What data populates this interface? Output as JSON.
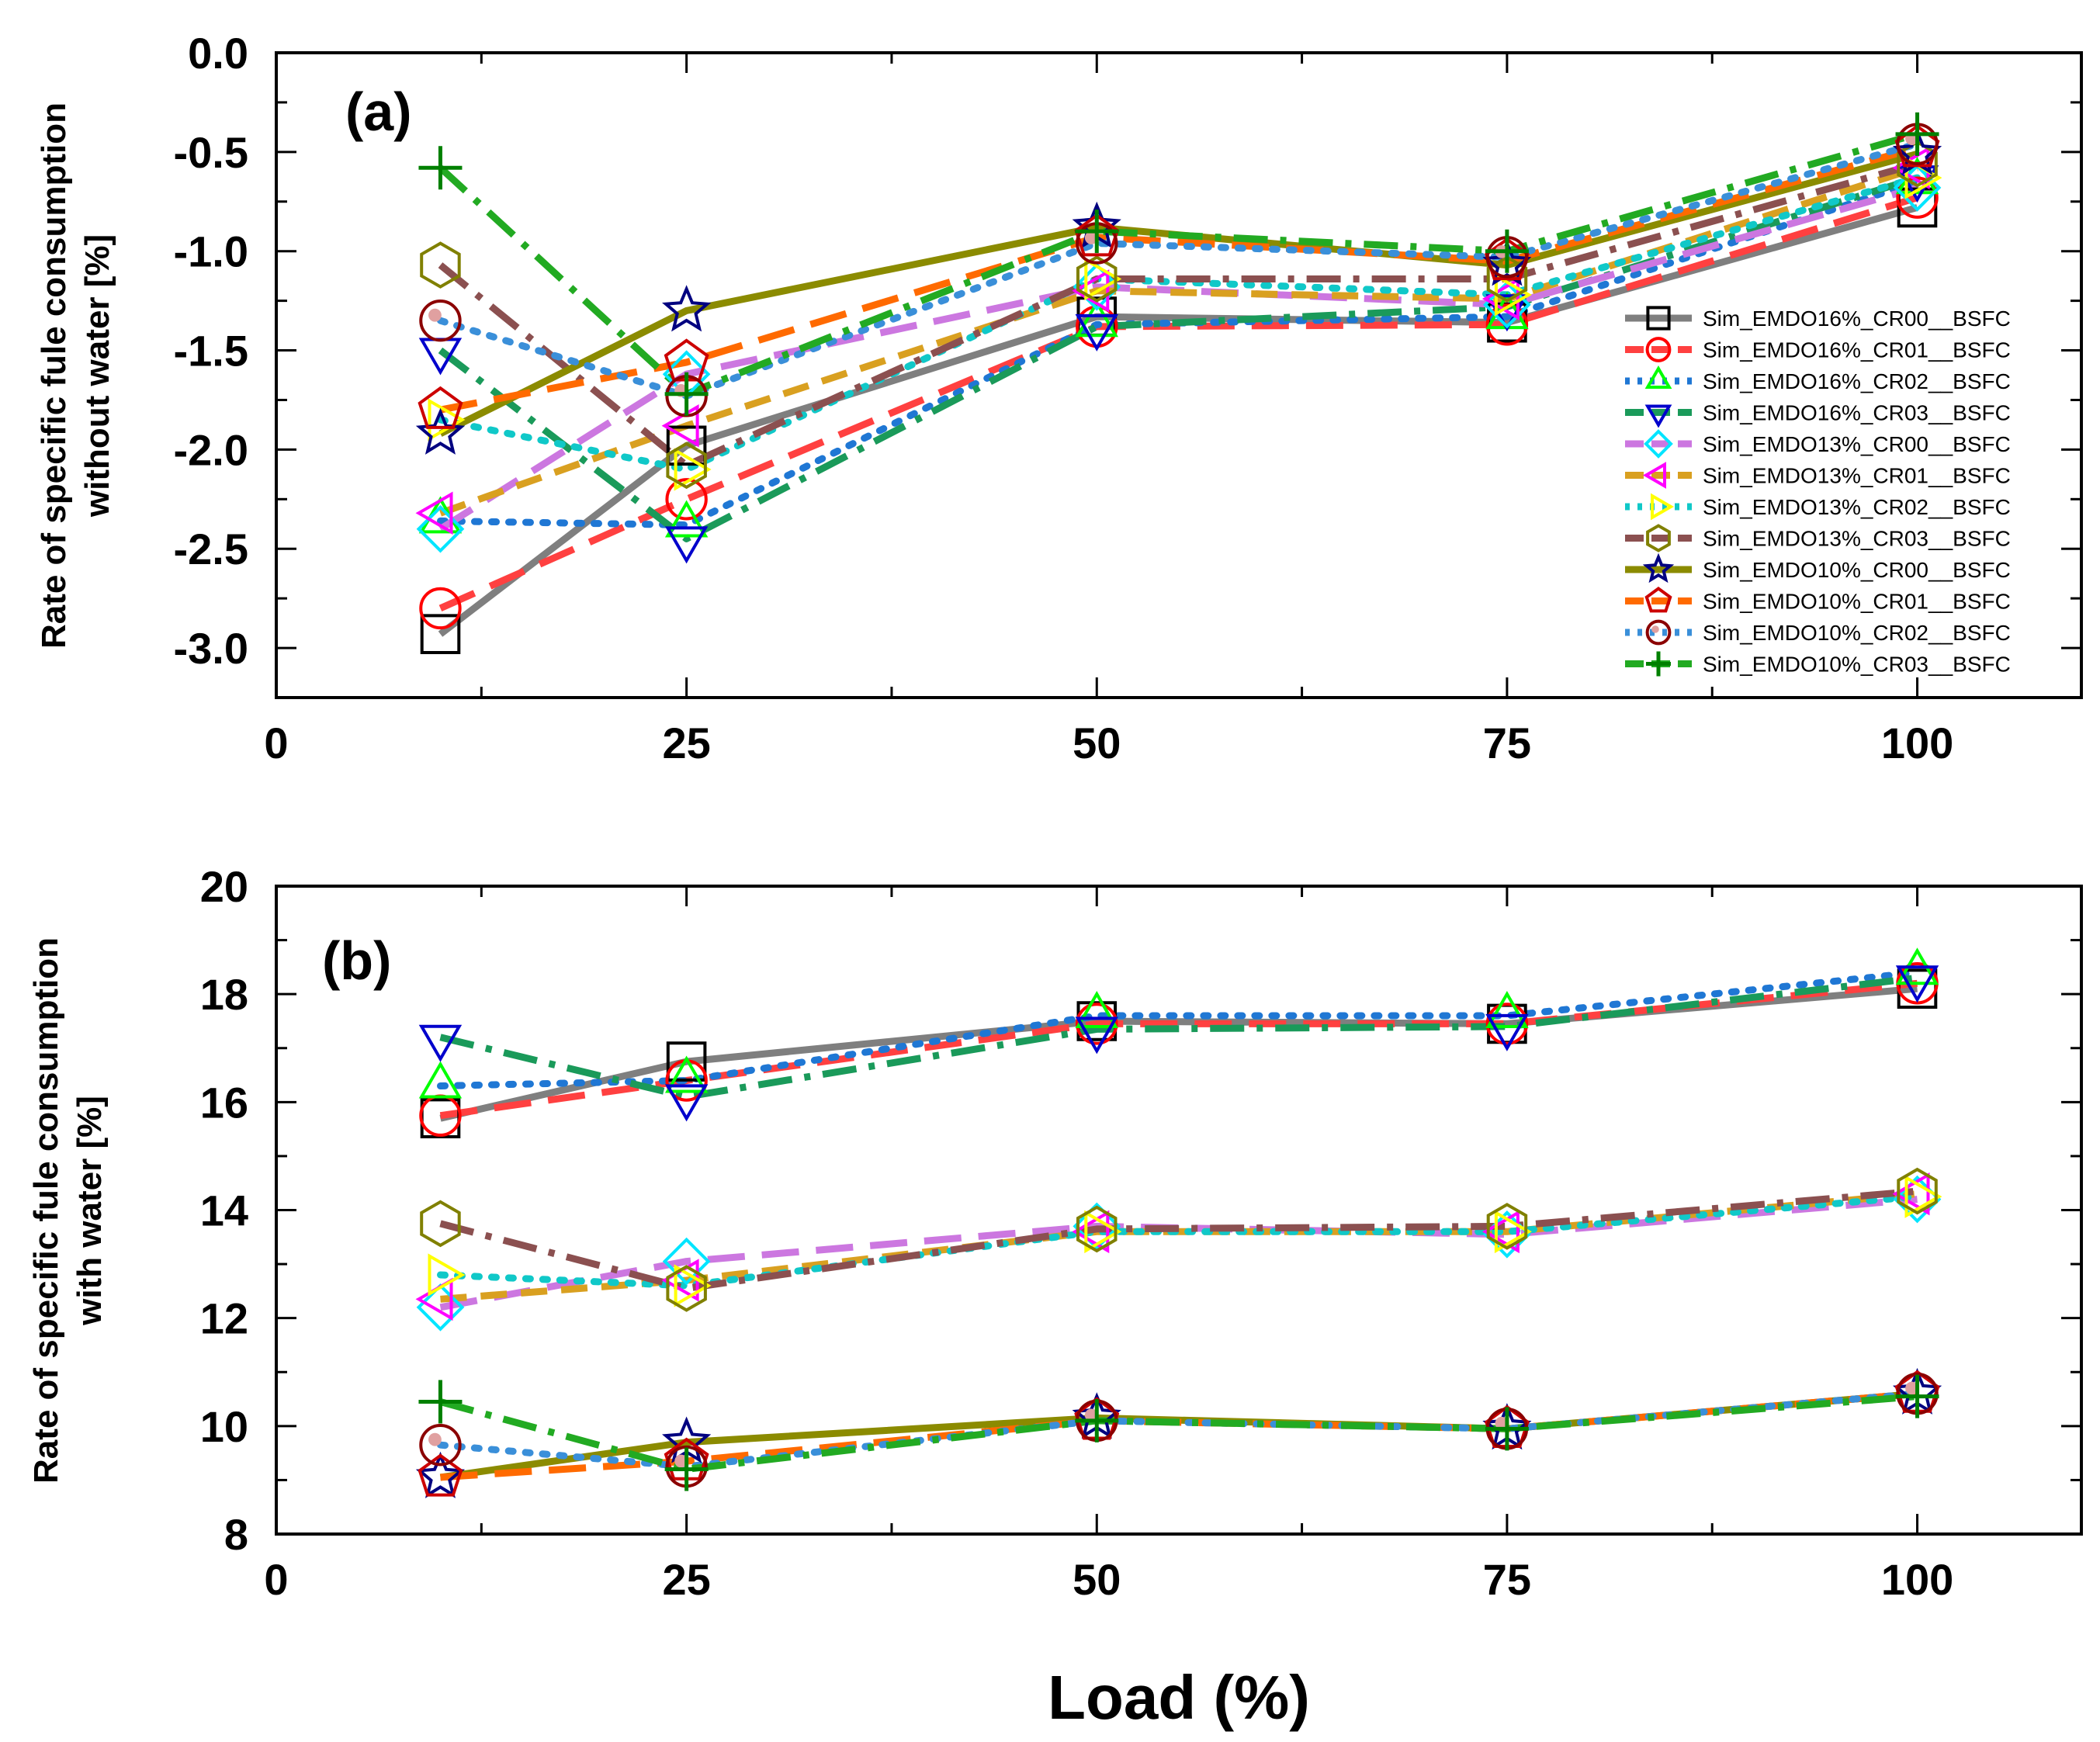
{
  "figure": {
    "xlabel": "Load (%)"
  },
  "chart_data": [
    {
      "type": "line",
      "panel_label": "(a)",
      "title": "",
      "xlabel": "",
      "ylabel_lines": [
        "Rate of specific fule consumption",
        "without water [%]"
      ],
      "xlim": [
        0,
        110
      ],
      "ylim": [
        -3.25,
        0.0
      ],
      "xticks": [
        0,
        25,
        50,
        75,
        100
      ],
      "xtick_labels": [
        "0",
        "25",
        "50",
        "75",
        "100"
      ],
      "yticks": [
        0.0,
        -0.5,
        -1.0,
        -1.5,
        -2.0,
        -2.5,
        -3.0
      ],
      "ytick_labels": [
        "0.0",
        "-0.5",
        "-1.0",
        "-1.5",
        "-2.0",
        "-2.5",
        "-3.0"
      ],
      "legend_position": "right-center",
      "x": [
        10,
        25,
        50,
        75,
        100
      ],
      "series": [
        {
          "name": "Sim_EMDO16%_CR00__BSFC",
          "color": "#7f7f7f",
          "dash": "solid",
          "marker": "square",
          "marker_color": "#000000",
          "values": [
            -2.93,
            -1.98,
            -1.33,
            -1.36,
            -0.78
          ]
        },
        {
          "name": "Sim_EMDO16%_CR01__BSFC",
          "color": "#ff4040",
          "dash": "long",
          "marker": "circle",
          "marker_color": "#ff0000",
          "values": [
            -2.8,
            -2.25,
            -1.38,
            -1.37,
            -0.73
          ]
        },
        {
          "name": "Sim_EMDO16%_CR02__BSFC",
          "color": "#1f77d4",
          "dash": "dot",
          "marker": "triangle-up",
          "marker_color": "#00ff00",
          "values": [
            -2.36,
            -2.38,
            -1.37,
            -1.33,
            -0.65
          ]
        },
        {
          "name": "Sim_EMDO16%_CR03__BSFC",
          "color": "#1a9a5a",
          "dash": "dashdot",
          "marker": "triangle-down",
          "marker_color": "#0000cc",
          "values": [
            -1.5,
            -2.45,
            -1.38,
            -1.28,
            -0.63
          ]
        },
        {
          "name": "Sim_EMDO13%_CR00__BSFC",
          "color": "#cc77e0",
          "dash": "long",
          "marker": "diamond",
          "marker_color": "#00e5ff",
          "values": [
            -2.4,
            -1.62,
            -1.18,
            -1.27,
            -0.68
          ]
        },
        {
          "name": "Sim_EMDO13%_CR01__BSFC",
          "color": "#d9a020",
          "dash": "mid",
          "marker": "triangle-left",
          "marker_color": "#ff00ff",
          "values": [
            -2.32,
            -1.88,
            -1.2,
            -1.24,
            -0.58
          ]
        },
        {
          "name": "Sim_EMDO13%_CR02__BSFC",
          "color": "#10c8c8",
          "dash": "dot",
          "marker": "triangle-right",
          "marker_color": "#ffff00",
          "values": [
            -1.85,
            -2.1,
            -1.14,
            -1.22,
            -0.63
          ]
        },
        {
          "name": "Sim_EMDO13%_CR03__BSFC",
          "color": "#8b5050",
          "dash": "dashdot",
          "marker": "hexagon",
          "marker_color": "#808000",
          "values": [
            -1.07,
            -2.08,
            -1.14,
            -1.14,
            -0.56
          ]
        },
        {
          "name": "Sim_EMDO10%_CR00__BSFC",
          "color": "#8b8b00",
          "dash": "solid",
          "marker": "star",
          "marker_color": "#000080",
          "values": [
            -1.92,
            -1.3,
            -0.88,
            -1.07,
            -0.51
          ]
        },
        {
          "name": "Sim_EMDO10%_CR01__BSFC",
          "color": "#ff6a00",
          "dash": "long",
          "marker": "pentagon",
          "marker_color": "#cc0000",
          "values": [
            -1.8,
            -1.56,
            -0.93,
            -1.05,
            -0.48
          ]
        },
        {
          "name": "Sim_EMDO10%_CR02__BSFC",
          "color": "#3a8fd9",
          "dash": "dot",
          "marker": "circle-dot",
          "marker_color": "#8b0000",
          "values": [
            -1.35,
            -1.73,
            -0.96,
            -1.03,
            -0.46
          ]
        },
        {
          "name": "Sim_EMDO10%_CR03__BSFC",
          "color": "#22aa22",
          "dash": "dashdot",
          "marker": "plus",
          "marker_color": "#008000",
          "values": [
            -0.58,
            -1.72,
            -0.9,
            -1.0,
            -0.41
          ]
        }
      ]
    },
    {
      "type": "line",
      "panel_label": "(b)",
      "title": "",
      "xlabel": "",
      "ylabel_lines": [
        "Rate of specific fule consumption",
        "with water [%]"
      ],
      "xlim": [
        0,
        110
      ],
      "ylim": [
        8,
        20
      ],
      "xticks": [
        0,
        25,
        50,
        75,
        100
      ],
      "xtick_labels": [
        "0",
        "25",
        "50",
        "75",
        "100"
      ],
      "yticks": [
        8,
        10,
        12,
        14,
        16,
        18,
        20
      ],
      "ytick_labels": [
        "8",
        "10",
        "12",
        "14",
        "16",
        "18",
        "20"
      ],
      "x": [
        10,
        25,
        50,
        75,
        100
      ],
      "series": [
        {
          "name": "Sim_EMDO16%_CR00__BSFC",
          "color": "#7f7f7f",
          "dash": "solid",
          "marker": "square",
          "marker_color": "#000000",
          "values": [
            15.7,
            16.75,
            17.5,
            17.45,
            18.1
          ]
        },
        {
          "name": "Sim_EMDO16%_CR01__BSFC",
          "color": "#ff4040",
          "dash": "long",
          "marker": "circle",
          "marker_color": "#ff0000",
          "values": [
            15.75,
            16.4,
            17.45,
            17.45,
            18.2
          ]
        },
        {
          "name": "Sim_EMDO16%_CR02__BSFC",
          "color": "#1f77d4",
          "dash": "dot",
          "marker": "triangle-up",
          "marker_color": "#00ff00",
          "values": [
            16.3,
            16.4,
            17.6,
            17.6,
            18.4
          ]
        },
        {
          "name": "Sim_EMDO16%_CR03__BSFC",
          "color": "#1a9a5a",
          "dash": "dashdot",
          "marker": "triangle-down",
          "marker_color": "#0000cc",
          "values": [
            17.2,
            16.1,
            17.35,
            17.4,
            18.3
          ]
        },
        {
          "name": "Sim_EMDO13%_CR00__BSFC",
          "color": "#cc77e0",
          "dash": "long",
          "marker": "diamond",
          "marker_color": "#00e5ff",
          "values": [
            12.2,
            13.05,
            13.7,
            13.55,
            14.2
          ]
        },
        {
          "name": "Sim_EMDO13%_CR01__BSFC",
          "color": "#d9a020",
          "dash": "mid",
          "marker": "triangle-left",
          "marker_color": "#ff00ff",
          "values": [
            12.35,
            12.7,
            13.6,
            13.6,
            14.3
          ]
        },
        {
          "name": "Sim_EMDO13%_CR02__BSFC",
          "color": "#10c8c8",
          "dash": "dot",
          "marker": "triangle-right",
          "marker_color": "#ffff00",
          "values": [
            12.8,
            12.6,
            13.6,
            13.6,
            14.25
          ]
        },
        {
          "name": "Sim_EMDO13%_CR03__BSFC",
          "color": "#8b5050",
          "dash": "dashdot",
          "marker": "hexagon",
          "marker_color": "#808000",
          "values": [
            13.75,
            12.55,
            13.65,
            13.7,
            14.35
          ]
        },
        {
          "name": "Sim_EMDO10%_CR00__BSFC",
          "color": "#8b8b00",
          "dash": "solid",
          "marker": "star",
          "marker_color": "#000080",
          "values": [
            9.05,
            9.7,
            10.15,
            9.95,
            10.6
          ]
        },
        {
          "name": "Sim_EMDO10%_CR01__BSFC",
          "color": "#ff6a00",
          "dash": "long",
          "marker": "pentagon",
          "marker_color": "#cc0000",
          "values": [
            9.05,
            9.35,
            10.1,
            9.95,
            10.6
          ]
        },
        {
          "name": "Sim_EMDO10%_CR02__BSFC",
          "color": "#3a8fd9",
          "dash": "dot",
          "marker": "circle-dot",
          "marker_color": "#8b0000",
          "values": [
            9.65,
            9.25,
            10.1,
            9.95,
            10.6
          ]
        },
        {
          "name": "Sim_EMDO10%_CR03__BSFC",
          "color": "#22aa22",
          "dash": "dashdot",
          "marker": "plus",
          "marker_color": "#008000",
          "values": [
            10.45,
            9.2,
            10.1,
            9.95,
            10.55
          ]
        }
      ]
    }
  ]
}
